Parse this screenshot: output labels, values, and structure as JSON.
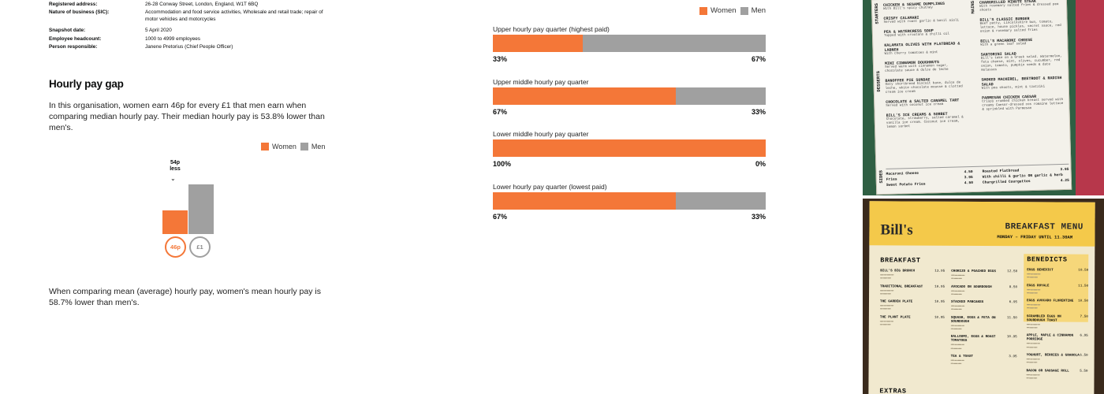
{
  "company_details": {
    "rows": [
      {
        "key": "Registered address:",
        "value": "26-28 Conway Street, London, England, W1T 6BQ"
      },
      {
        "key": "Nature of business (SIC):",
        "value": "Accommodation and food service activities, Wholesale and retail trade; repair of motor vehicles and motorcycles"
      },
      {
        "key": "Snapshot date:",
        "value": "5 April 2020"
      },
      {
        "key": "Employee headcount:",
        "value": "1000 to 4999 employees"
      },
      {
        "key": "Person responsible:",
        "value": "Janene Pretorius (Chief People Officer)"
      }
    ]
  },
  "hourly_gap": {
    "title": "Hourly pay gap",
    "median_text": "In this organisation, women earn 46p for every £1 that men earn when comparing median hourly pay. Their median hourly pay is 53.8% lower than men's.",
    "mean_text": "When comparing mean (average) hourly pay, women's mean hourly pay is 58.7% lower than men's.",
    "gap_label_line1": "54p",
    "gap_label_line2": "less",
    "women_value_label": "46p",
    "men_value_label": "£1",
    "women_value": 0.46,
    "men_value": 1.0
  },
  "legend": {
    "women": "Women",
    "men": "Men",
    "women_color": "#f47738",
    "men_color": "#a0a0a0"
  },
  "quartiles": [
    {
      "label": "Upper hourly pay quarter (highest paid)",
      "women_pct": 33,
      "men_pct": 67,
      "women_text": "33%",
      "men_text": "67%"
    },
    {
      "label": "Upper middle hourly pay quarter",
      "women_pct": 67,
      "men_pct": 33,
      "women_text": "67%",
      "men_text": "33%"
    },
    {
      "label": "Lower middle hourly pay quarter",
      "women_pct": 100,
      "men_pct": 0,
      "women_text": "100%",
      "men_text": "0%"
    },
    {
      "label": "Lower hourly pay quarter (lowest paid)",
      "women_pct": 67,
      "men_pct": 33,
      "women_text": "67%",
      "men_text": "33%"
    }
  ],
  "menu_photo_1": {
    "side_labels": [
      "STARTERS",
      "DESSERTS",
      "MAINS",
      "SIDES"
    ],
    "left_items": [
      {
        "name": "Chicken & Sesame Dumplings",
        "desc": "With Bill's spicy chutney"
      },
      {
        "name": "Crispy Calamari",
        "desc": "Served with roast garlic & basil aioli"
      },
      {
        "name": "Pea & Watercress Soup",
        "desc": "Topped with croutons & chilli oil"
      },
      {
        "name": "Kalamata Olives with Flatbread & Labneh",
        "desc": "With cherry tomatoes & mint"
      },
      {
        "name": "Mini Cinnamon Doughnuts",
        "desc": "Served warm with cinnamon sugar, chocolate sauce & dulce de leche"
      },
      {
        "name": "Banoffee Pie Sundae",
        "desc": "Oaty shortbread biscuit base, dulce de leche, white chocolate mousse & clotted cream ice cream"
      },
      {
        "name": "Chocolate & Salted Caramel Tart",
        "desc": "Served with coconut ice cream"
      },
      {
        "name": "Bill's Ice Creams & Sorbet",
        "desc": "Chocolate, strawberry, salted caramel & vanilla ice cream. Coconut ice cream, lemon sorbet"
      }
    ],
    "right_items": [
      {
        "name": "Chargrilled Minute Steak",
        "desc": "With rosemary salted fries & dressed pea shoots"
      },
      {
        "name": "Bill's Classic Burger",
        "desc": "Beef patty, Lincolnshire bun, tomato, lettuce, house pickles, secret sauce, red onion & rosemary salted fries"
      },
      {
        "name": "Bill's Macaroni Cheese",
        "desc": "With a green leaf salad"
      },
      {
        "name": "Santorini Salad",
        "desc": "Bill's take on a Greek salad. Watermelon, feta cheese, mint, olives, cucumber, red onion, tomato, pumpkin seeds & date molasses"
      },
      {
        "name": "Smoked Mackerel, Beetroot & Radish Salad",
        "desc": "With pea shoots, mint & tzatziki"
      },
      {
        "name": "Parmesan Chicken Caesar",
        "desc": "Crispy crumbed chicken breast served with creamy Caesar-dressed cos romaine lettuce & sprinkled with Parmesan"
      }
    ],
    "sides_left": [
      {
        "name": "Macaroni Cheese",
        "price": "4.50"
      },
      {
        "name": "Fries",
        "price": "3.95"
      },
      {
        "name": "Sweet Potato Fries",
        "price": "4.50"
      }
    ],
    "sides_right": [
      {
        "name": "Roasted Flatbread",
        "price": "3.95"
      },
      {
        "name": "With chilli & garlic OR garlic & herb",
        "price": ""
      },
      {
        "name": "Chargrilled Courgettes",
        "price": "4.25"
      }
    ]
  },
  "menu_photo_2": {
    "logo": "Bill's",
    "title": "BREAKFAST MENU",
    "subtitle": "MONDAY – FRIDAY UNTIL 11.30AM",
    "section_breakfast": "BREAKFAST",
    "section_benedicts": "BENEDICTS",
    "section_extras": "EXTRAS",
    "col1": [
      {
        "name": "BILL'S BIG BRUNCH",
        "price": "13.95"
      },
      {
        "name": "TRADITIONAL BREAKFAST",
        "price": "10.95"
      },
      {
        "name": "THE GARDEN PLATE",
        "price": "10.95"
      },
      {
        "name": "THE PLANT PLATE",
        "price": "10.95"
      }
    ],
    "col2": [
      {
        "name": "CHORIZO & POACHED EGGS",
        "price": "12.50"
      },
      {
        "name": "AVOCADO ON SOURDOUGH",
        "price": "8.50"
      },
      {
        "name": "STACKED PANCAKES",
        "price": "6.95"
      },
      {
        "name": "SQUASH, EGGS & FETA ON SOURDOUGH",
        "price": "11.50"
      },
      {
        "name": "HALLOUMI, EGGS & ROAST TOMATOES",
        "price": "10.95"
      },
      {
        "name": "TEA & TOAST",
        "price": "3.95"
      }
    ],
    "col3": [
      {
        "name": "EGGS BENEDICT",
        "price": "10.50"
      },
      {
        "name": "EGGS ROYALE",
        "price": "11.50"
      },
      {
        "name": "EGGS AVOCADO FLORENTINE",
        "price": "10.50"
      },
      {
        "name": "SCRAMBLED EGGS ON SOURDOUGH TOAST",
        "price": "7.50"
      },
      {
        "name": "APPLE, MAPLE & CINNAMON PORRIDGE",
        "price": "6.95"
      },
      {
        "name": "YOGHURT, BERRIES & GRANOLA",
        "price": "6.50"
      },
      {
        "name": "BACON OR SAUSAGE ROLL",
        "price": "5.50"
      }
    ]
  }
}
